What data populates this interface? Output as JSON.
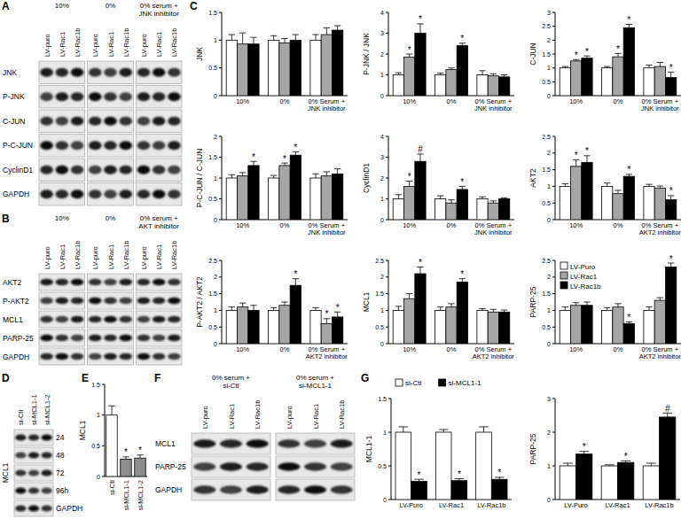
{
  "blots": [
    {
      "panel": "A",
      "groups": [
        "10%",
        "0%",
        "0% serum + JNK inhibitor"
      ],
      "lanes": [
        "LV-puro",
        "LV-Rac1",
        "LV-Rac1b"
      ],
      "rows": [
        "JNK",
        "P-JNK",
        "C-JUN",
        "P-C-JUN",
        "CyclinD1",
        "GAPDH"
      ]
    },
    {
      "panel": "B",
      "groups": [
        "10%",
        "0%",
        "0% serum + AKT inhibitor"
      ],
      "lanes": [
        "LV-puro",
        "LV-Rac1",
        "LV-Rac1b"
      ],
      "rows": [
        "AKT2",
        "P-AKT2",
        "MCL1",
        "PARP-25",
        "GAPDH"
      ]
    },
    {
      "panel": "D",
      "side_label": "MCL1",
      "lanes": [
        "si-Ctl",
        "si-MCL1-1",
        "si-MCL1-2"
      ],
      "rows": [
        "24",
        "48",
        "72",
        "96h",
        "GAPDH"
      ]
    },
    {
      "panel": "F",
      "groups": [
        "0% serum + si-Ctl",
        "0% serum + si-MCL1-1"
      ],
      "lanes": [
        "LV-puro",
        "LV-Rac1",
        "LV-Rac1b"
      ],
      "rows": [
        "MCL1",
        "PARP-25",
        "GAPDH"
      ]
    }
  ],
  "chart_data": [
    {
      "panel": "C",
      "type": "bar",
      "ylabel": "JNK",
      "categories": [
        "10%",
        "0%",
        "0% Serum + JNK inhibitor"
      ],
      "ylim": [
        0,
        1.5
      ],
      "yticks": [
        0,
        0.5,
        1,
        1.5
      ],
      "series": [
        {
          "name": "LV-Puro",
          "color": "#ffffff",
          "values": [
            1,
            1,
            1
          ],
          "errors": [
            0.1,
            0.08,
            0.1
          ]
        },
        {
          "name": "LV-Rac1",
          "color": "#a6a6a6",
          "values": [
            0.93,
            0.95,
            1.1
          ],
          "errors": [
            0.2,
            0.08,
            0.12
          ]
        },
        {
          "name": "LV-Rac1b",
          "color": "#000000",
          "values": [
            0.93,
            1.0,
            1.18
          ],
          "errors": [
            0.12,
            0.1,
            0.08
          ]
        }
      ]
    },
    {
      "type": "bar",
      "ylabel": "P-JNK / JNK",
      "categories": [
        "10%",
        "0%",
        "0% Serum + JNK inhibitor"
      ],
      "ylim": [
        0,
        4
      ],
      "yticks": [
        0,
        1,
        2,
        3,
        4
      ],
      "series": [
        {
          "name": "LV-Puro",
          "color": "#ffffff",
          "values": [
            1,
            1,
            1
          ],
          "errors": [
            0.1,
            0.08,
            0.2
          ]
        },
        {
          "name": "LV-Rac1",
          "color": "#a6a6a6",
          "values": [
            1.85,
            1.25,
            0.95
          ],
          "errors": [
            0.15,
            0.08,
            0.1
          ],
          "annotations": [
            "*",
            null,
            null
          ]
        },
        {
          "name": "LV-Rac1b",
          "color": "#000000",
          "values": [
            3.0,
            2.4,
            0.9
          ],
          "errors": [
            0.45,
            0.12,
            0.1
          ],
          "annotations": [
            "*",
            "*",
            null
          ]
        }
      ]
    },
    {
      "type": "bar",
      "ylabel": "C-JUN",
      "categories": [
        "10%",
        "0%",
        "0% Serum + JNK inhibitor"
      ],
      "ylim": [
        0,
        3
      ],
      "yticks": [
        0,
        0.5,
        1,
        1.5,
        2,
        2.5,
        3
      ],
      "series": [
        {
          "name": "LV-Puro",
          "color": "#ffffff",
          "values": [
            1,
            1,
            1
          ],
          "errors": [
            0.05,
            0.05,
            0.1
          ]
        },
        {
          "name": "LV-Rac1",
          "color": "#a6a6a6",
          "values": [
            1.25,
            1.4,
            1.05
          ],
          "errors": [
            0.05,
            0.12,
            0.15
          ],
          "annotations": [
            "*",
            "*",
            null
          ]
        },
        {
          "name": "LV-Rac1b",
          "color": "#000000",
          "values": [
            1.35,
            2.45,
            0.65
          ],
          "errors": [
            0.08,
            0.12,
            0.2
          ],
          "annotations": [
            "*",
            "*",
            "*"
          ]
        }
      ]
    },
    {
      "type": "bar",
      "ylabel": "P-C-JUN / C-JUN",
      "categories": [
        "10%",
        "0%",
        "0% Serum + JNK inhibitor"
      ],
      "ylim": [
        0,
        2
      ],
      "yticks": [
        0,
        0.5,
        1,
        1.5,
        2
      ],
      "series": [
        {
          "name": "LV-Puro",
          "color": "#ffffff",
          "values": [
            1,
            1,
            1
          ],
          "errors": [
            0.08,
            0.06,
            0.1
          ]
        },
        {
          "name": "LV-Rac1",
          "color": "#a6a6a6",
          "values": [
            1.05,
            1.3,
            1.05
          ],
          "errors": [
            0.08,
            0.06,
            0.1
          ],
          "annotations": [
            null,
            "*",
            null
          ]
        },
        {
          "name": "LV-Rac1b",
          "color": "#000000",
          "values": [
            1.3,
            1.55,
            1.1
          ],
          "errors": [
            0.1,
            0.08,
            0.12
          ],
          "annotations": [
            "*",
            "*",
            null
          ]
        }
      ]
    },
    {
      "type": "bar",
      "ylabel": "CyclinD1",
      "categories": [
        "10%",
        "0%",
        "0% Serum + JNK inhibitor"
      ],
      "ylim": [
        0,
        4
      ],
      "yticks": [
        0,
        1,
        2,
        3,
        4
      ],
      "series": [
        {
          "name": "LV-Puro",
          "color": "#ffffff",
          "values": [
            1,
            1,
            1
          ],
          "errors": [
            0.2,
            0.15,
            0.1
          ]
        },
        {
          "name": "LV-Rac1",
          "color": "#a6a6a6",
          "values": [
            1.6,
            0.8,
            0.8
          ],
          "errors": [
            0.25,
            0.15,
            0.1
          ],
          "annotations": [
            "*",
            null,
            null
          ]
        },
        {
          "name": "LV-Rac1b",
          "color": "#000000",
          "values": [
            2.8,
            1.45,
            1.0
          ],
          "errors": [
            0.35,
            0.15,
            0.05
          ],
          "annotations": [
            "#",
            "*",
            null
          ]
        }
      ]
    },
    {
      "type": "bar",
      "ylabel": "AKT2",
      "categories": [
        "10%",
        "0%",
        "0% Serum + AKT2 inhibitor"
      ],
      "ylim": [
        0,
        2.5
      ],
      "yticks": [
        0,
        0.5,
        1,
        1.5,
        2,
        2.5
      ],
      "series": [
        {
          "name": "LV-Puro",
          "color": "#ffffff",
          "values": [
            1,
            1,
            1
          ],
          "errors": [
            0.08,
            0.1,
            0.06
          ]
        },
        {
          "name": "LV-Rac1",
          "color": "#a6a6a6",
          "values": [
            1.6,
            0.78,
            0.95
          ],
          "errors": [
            0.2,
            0.1,
            0.06
          ],
          "annotations": [
            "*",
            null,
            null
          ]
        },
        {
          "name": "LV-Rac1b",
          "color": "#000000",
          "values": [
            1.72,
            1.3,
            0.6
          ],
          "errors": [
            0.2,
            0.06,
            0.12
          ],
          "annotations": [
            "*",
            "*",
            "*"
          ]
        }
      ]
    },
    {
      "type": "bar",
      "ylabel": "P-AKT2 / AKT2",
      "categories": [
        "10%",
        "0%",
        "0% Serum + AKT2 inhibitor"
      ],
      "ylim": [
        0,
        2.5
      ],
      "yticks": [
        0,
        0.5,
        1,
        1.5,
        2,
        2.5
      ],
      "series": [
        {
          "name": "LV-Puro",
          "color": "#ffffff",
          "values": [
            1,
            1,
            1
          ],
          "errors": [
            0.1,
            0.08,
            0.08
          ]
        },
        {
          "name": "LV-Rac1",
          "color": "#a6a6a6",
          "values": [
            1.1,
            1.15,
            0.6
          ],
          "errors": [
            0.12,
            0.1,
            0.15
          ],
          "annotations": [
            null,
            null,
            "*"
          ]
        },
        {
          "name": "LV-Rac1b",
          "color": "#000000",
          "values": [
            1.0,
            1.75,
            0.8
          ],
          "errors": [
            0.15,
            0.2,
            0.15
          ],
          "annotations": [
            null,
            "*",
            "*"
          ]
        }
      ]
    },
    {
      "type": "bar",
      "ylabel": "MCL1",
      "categories": [
        "10%",
        "0%",
        "0% Serum + AKT2 inhibitor"
      ],
      "ylim": [
        0,
        2.5
      ],
      "yticks": [
        0,
        0.5,
        1,
        1.5,
        2,
        2.5
      ],
      "series": [
        {
          "name": "LV-Puro",
          "color": "#ffffff",
          "values": [
            1,
            1,
            1
          ],
          "errors": [
            0.12,
            0.1,
            0.05
          ]
        },
        {
          "name": "LV-Rac1",
          "color": "#a6a6a6",
          "values": [
            1.35,
            1.1,
            0.95
          ],
          "errors": [
            0.15,
            0.1,
            0.08
          ]
        },
        {
          "name": "LV-Rac1b",
          "color": "#000000",
          "values": [
            2.1,
            1.85,
            0.95
          ],
          "errors": [
            0.2,
            0.1,
            0.06
          ],
          "annotations": [
            "*",
            "*",
            null
          ]
        }
      ]
    },
    {
      "type": "bar",
      "ylabel": "PARP-25",
      "categories": [
        "10%",
        "0%",
        "0% Serum + AKT2 inhibitor"
      ],
      "ylim": [
        0,
        2.5
      ],
      "yticks": [
        0,
        0.5,
        1,
        1.5,
        2,
        2.5
      ],
      "legend": "upper-left",
      "series": [
        {
          "name": "LV-Puro",
          "color": "#ffffff",
          "values": [
            1,
            1,
            1
          ],
          "errors": [
            0.1,
            0.08,
            0.1
          ]
        },
        {
          "name": "LV-Rac1",
          "color": "#a6a6a6",
          "values": [
            1.15,
            1.1,
            1.3
          ],
          "errors": [
            0.08,
            0.1,
            0.08
          ]
        },
        {
          "name": "LV-Rac1b",
          "color": "#000000",
          "values": [
            1.15,
            0.6,
            2.3
          ],
          "errors": [
            0.1,
            0.05,
            0.12
          ],
          "annotations": [
            null,
            "*",
            "*"
          ]
        }
      ]
    },
    {
      "panel": "E",
      "type": "bar",
      "ylabel": "MCL1",
      "categories": [
        "si-Ctl",
        "si-MCL1-1",
        "si-MCL1-2"
      ],
      "ylim": [
        0,
        1.5
      ],
      "yticks": [
        0,
        0.5,
        1,
        1.5
      ],
      "series": [
        {
          "name": "MCL1",
          "colors": [
            "#ffffff",
            "#8c8c8c",
            "#8c8c8c"
          ],
          "values": [
            1,
            0.28,
            0.3
          ],
          "errors": [
            0.15,
            0.04,
            0.05
          ],
          "annotations": [
            null,
            "*",
            "*"
          ]
        }
      ]
    },
    {
      "panel": "G",
      "type": "bar",
      "ylabel": "MCL1-1",
      "categories": [
        "LV-Puro",
        "LV-Rac1",
        "LV-Rac1b"
      ],
      "ylim": [
        0,
        1.5
      ],
      "yticks": [
        0,
        0.5,
        1,
        1.5
      ],
      "legend": "top",
      "series": [
        {
          "name": "si-Ctl",
          "color": "#ffffff",
          "values": [
            1,
            1,
            1
          ],
          "errors": [
            0.08,
            0.04,
            0.08
          ]
        },
        {
          "name": "si-MCL1-1",
          "color": "#000000",
          "values": [
            0.27,
            0.28,
            0.3
          ],
          "errors": [
            0.03,
            0.03,
            0.03
          ],
          "annotations": [
            "*",
            "*",
            "*"
          ]
        }
      ]
    },
    {
      "type": "bar",
      "ylabel": "PARP-25",
      "categories": [
        "LV-Puro",
        "LV-Rac1",
        "LV-Rac1b"
      ],
      "ylim": [
        0,
        3
      ],
      "yticks": [
        0,
        1,
        2,
        3
      ],
      "series": [
        {
          "name": "si-Ctl",
          "color": "#ffffff",
          "values": [
            1,
            1,
            1
          ],
          "errors": [
            0.08,
            0.03,
            0.08
          ]
        },
        {
          "name": "si-MCL1-1",
          "color": "#000000",
          "values": [
            1.35,
            1.1,
            2.45
          ],
          "errors": [
            0.08,
            0.05,
            0.12
          ],
          "annotations": [
            "*",
            "*",
            "#"
          ]
        }
      ]
    }
  ]
}
